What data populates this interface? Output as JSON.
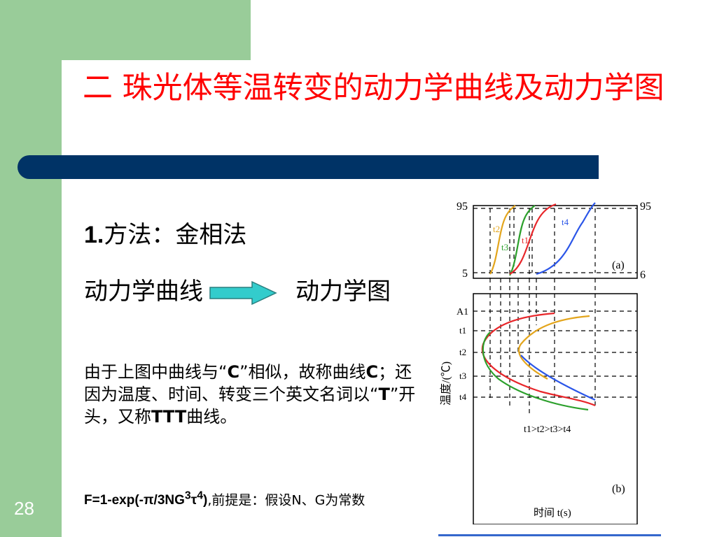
{
  "slide": {
    "page_number": "28",
    "title": "二 珠光体等温转变的动力学曲线及动力学图",
    "heading": {
      "num": "1.",
      "text": "方法：金相法"
    },
    "line2_left": "动力学曲线",
    "line2_right": "动力学图",
    "para_parts": [
      "由于上图中曲线与“",
      "C",
      "”相似，故称曲线",
      "C",
      "；还因为温度、时间、转变三个英文名词以“",
      "T",
      "”开头，又称",
      "TTT",
      "曲线。"
    ],
    "formula": {
      "text": "F=1-exp(-π/3NG",
      "sup1": "3",
      "mid": "τ",
      "sup2": "4",
      "end": ")",
      "note": ",前提是：假设N、G为常数"
    }
  },
  "figure": {
    "a": {
      "top_left": "95",
      "bottom_left": "5",
      "top_right": "95",
      "bottom_right": "6",
      "label": "(a)",
      "curve_labels": [
        "t2",
        "t3",
        "t1",
        "t4"
      ]
    },
    "b": {
      "y_label": "温度/(℃)",
      "y_ticks": [
        "A1",
        "t1",
        "t2",
        "t3",
        "t4"
      ],
      "relation": "t1>t2>t3>t4",
      "label": "(b)",
      "x_label": "时间  t(s)"
    },
    "colors": {
      "t1": "#e8262a",
      "t2": "#e3a51c",
      "t3": "#2ca02c",
      "t4": "#2a55e8"
    }
  }
}
